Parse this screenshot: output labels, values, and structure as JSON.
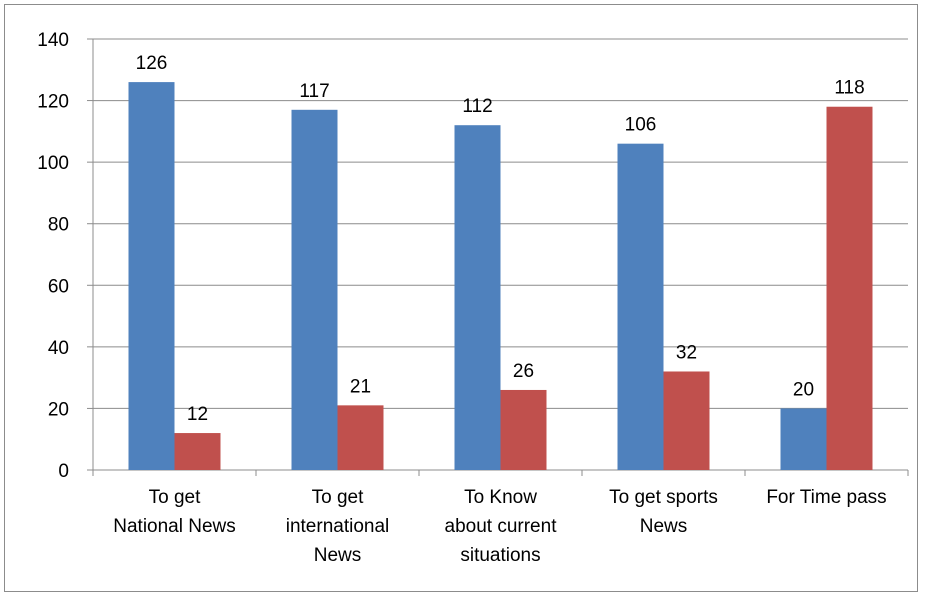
{
  "chart_data": {
    "type": "bar",
    "categories": [
      [
        "To get",
        "National News"
      ],
      [
        "To get",
        "international",
        "News"
      ],
      [
        "To Know",
        "about current",
        "situations"
      ],
      [
        "To get sports",
        "News"
      ],
      [
        "For Time pass"
      ]
    ],
    "series": [
      {
        "values": [
          126,
          117,
          112,
          106,
          20
        ],
        "color": "#4f81bd"
      },
      {
        "values": [
          12,
          21,
          26,
          32,
          118
        ],
        "color": "#c0504d"
      }
    ],
    "y_ticks": [
      0,
      20,
      40,
      60,
      80,
      100,
      120,
      140
    ],
    "ylim": [
      0,
      140
    ],
    "grid": true,
    "data_labels": true,
    "legend": "none"
  }
}
